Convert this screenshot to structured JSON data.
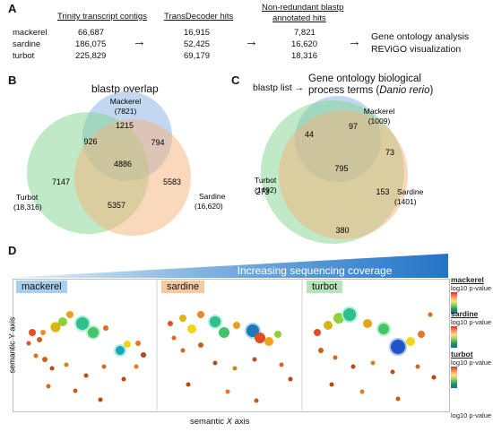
{
  "panels": {
    "a": "A",
    "b": "B",
    "c": "C",
    "d": "D"
  },
  "table": {
    "col_headers": [
      "Trinity transcript contigs",
      "TransDecoder hits",
      "Non-redundant blastp",
      "annotated hits"
    ],
    "species": [
      "mackerel",
      "sardine",
      "turbot"
    ],
    "trinity": [
      "66,687",
      "186,075",
      "225,829"
    ],
    "transdecoder": [
      "16,915",
      "52,425",
      "69,179"
    ],
    "nonredundant": [
      "7,821",
      "16,620",
      "18,316"
    ],
    "result_line1": "Gene ontology analysis",
    "result_line2": "REViGO visualization",
    "arrow": "→"
  },
  "venn_b": {
    "title": "blastp overlap",
    "mackerel_name": "Mackerel",
    "mackerel_count": "(7821)",
    "turbot_name": "Turbot",
    "turbot_count": "(18,316)",
    "sardine_name": "Sardine",
    "sardine_count": "(16,620)",
    "regions": {
      "m_only": "1215",
      "m_t": "926",
      "m_s": "794",
      "all": "4886",
      "t_only": "7147",
      "s_only": "5583",
      "t_s": "5357"
    },
    "colors": {
      "mackerel": "#8fb8e8",
      "turbot": "#7fd38f",
      "sardine": "#f6b27a"
    }
  },
  "venn_c": {
    "prefix": "blastp list →",
    "title_line1": "Gene ontology biological",
    "title_line2_plain": "process terms (",
    "title_line2_italic": "Danio rerio",
    "title_line2_end": ")",
    "mackerel_name": "Mackerel",
    "mackerel_count": "(1009)",
    "turbot_name": "Turbot",
    "turbot_count": "(1492)",
    "sardine_name": "Sardine",
    "sardine_count": "(1401)",
    "regions": {
      "m_only": "97",
      "m_t": "44",
      "m_s": "73",
      "all": "795",
      "t_only": "273",
      "s_only": "153",
      "t_s": "380"
    }
  },
  "panel_d": {
    "banner": "Increasing sequencing coverage",
    "tags": [
      "mackerel",
      "sardine",
      "turbot"
    ],
    "y_axis": "semantic Y axis",
    "x_axis_plain": "semantic ",
    "x_axis_italic": "X",
    "x_axis_end": " axis",
    "legend": [
      {
        "name": "mackerel",
        "label": "log10 p-value"
      },
      {
        "name": "sardine",
        "label": "log10 p-value"
      },
      {
        "name": "turbot",
        "label": "log10 p-value"
      }
    ],
    "size_label": "log10 p-value",
    "tag_colors": {
      "mackerel": "#a9cfee",
      "sardine": "#f7c9a0",
      "turbot": "#b7e3b8"
    }
  }
}
